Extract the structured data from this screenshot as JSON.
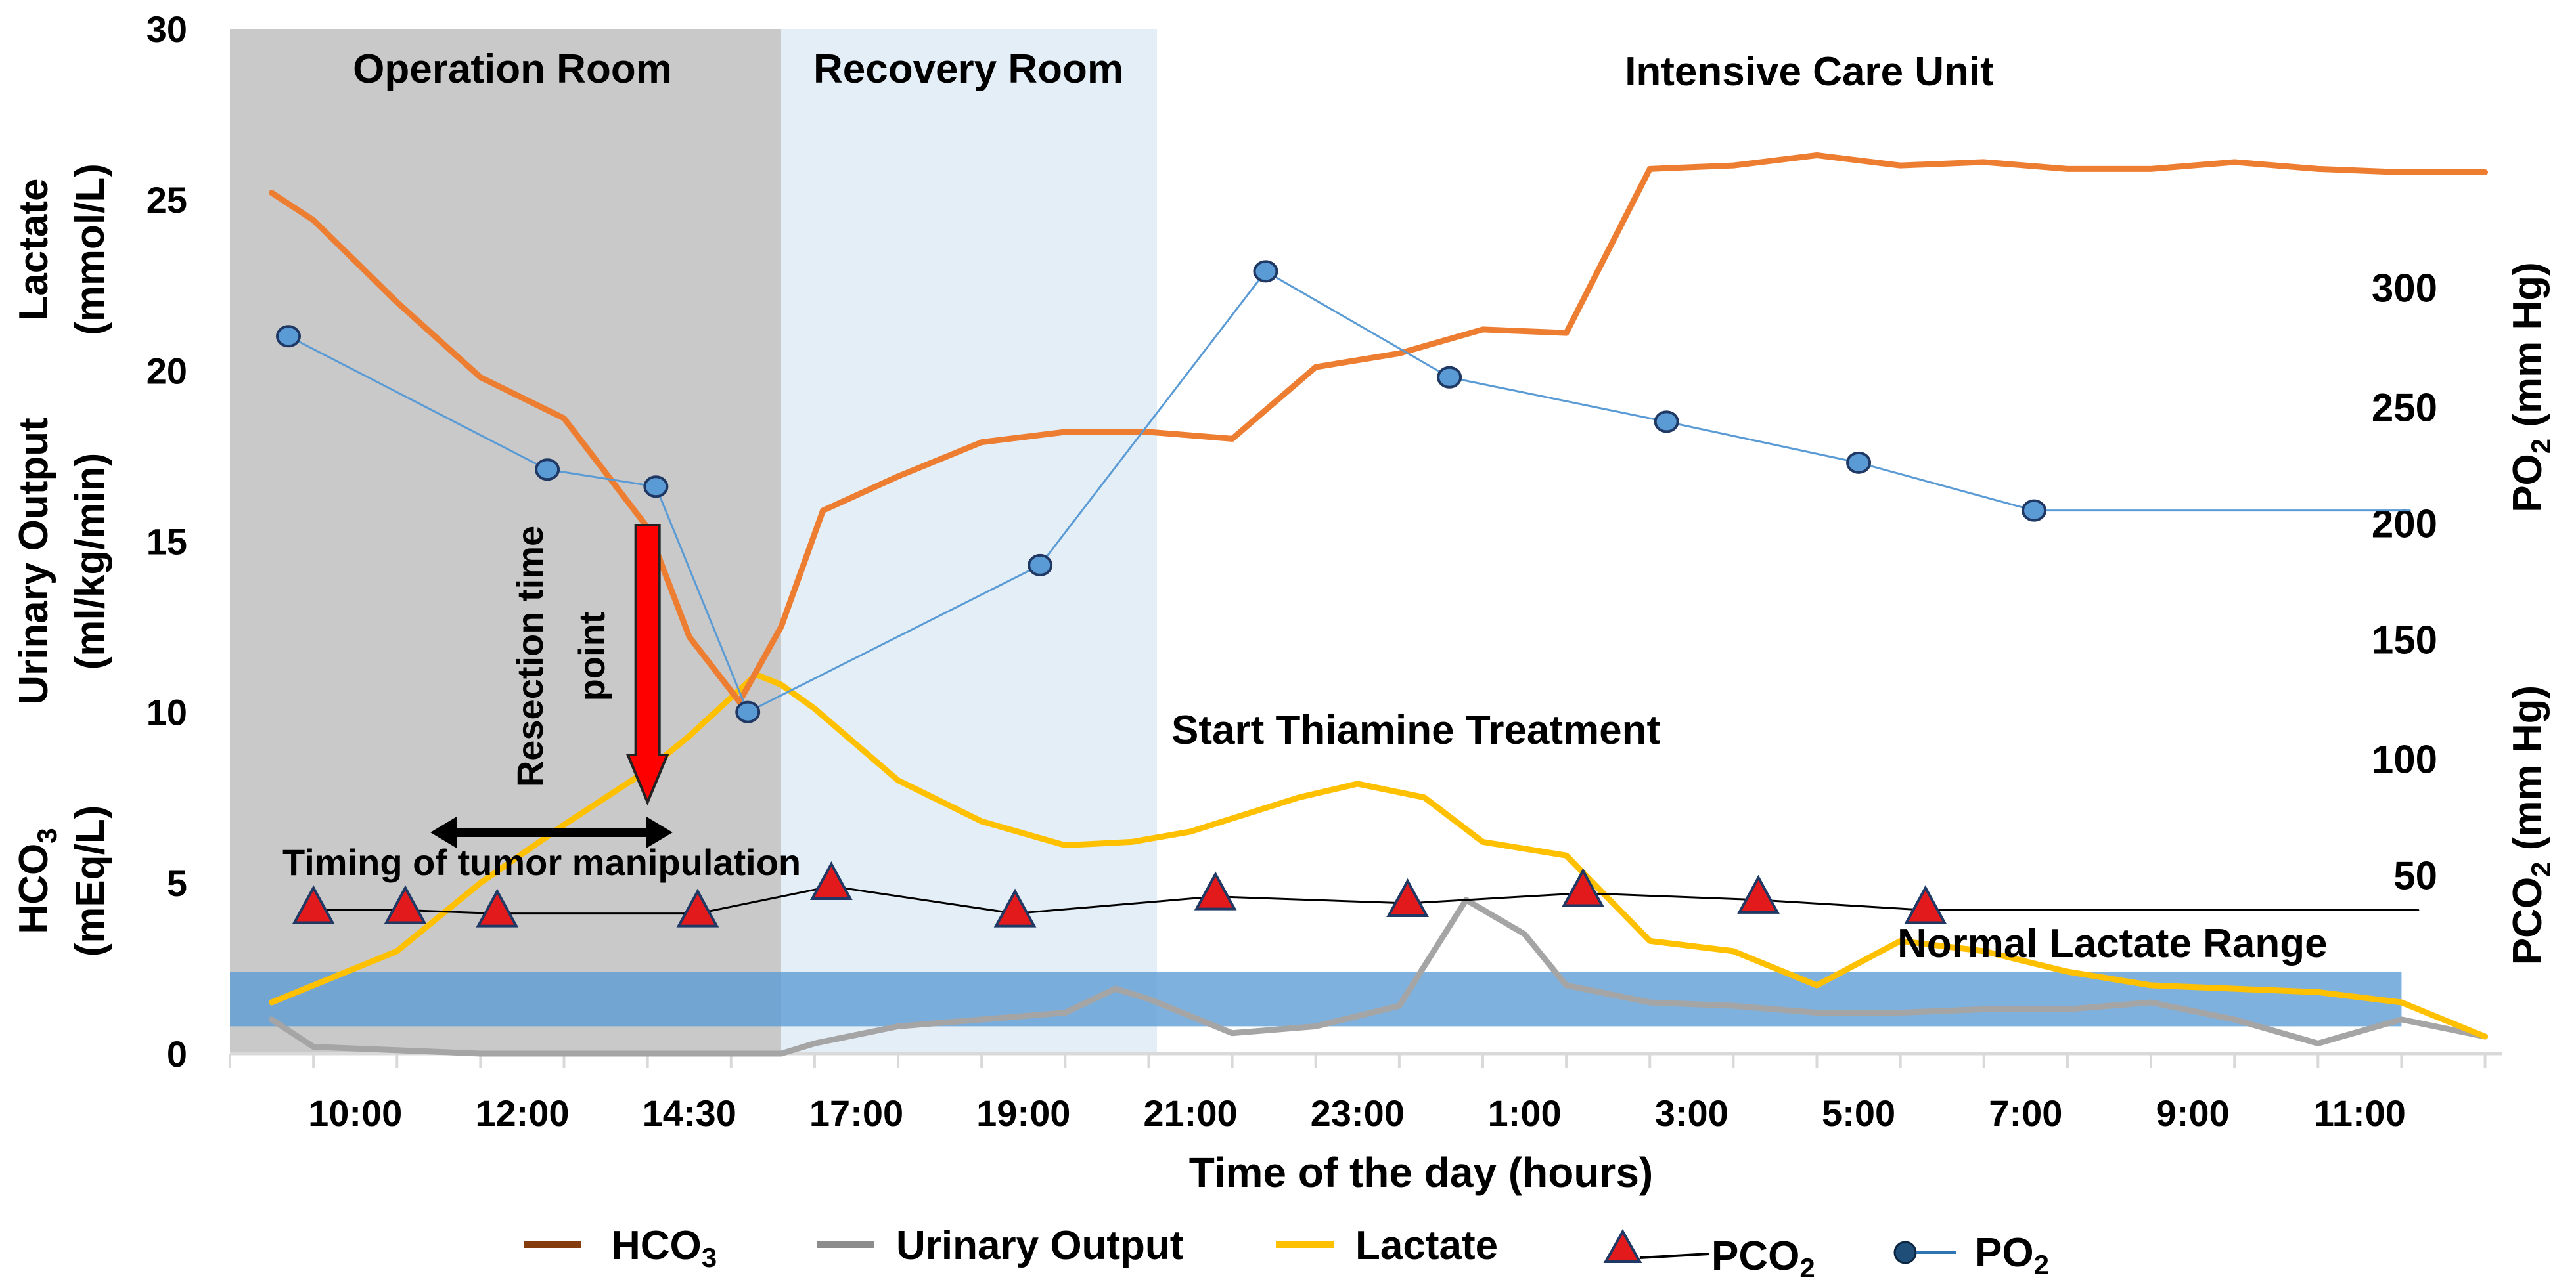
{
  "chart_data": {
    "type": "line",
    "x_tick_labels": [
      "10:00",
      "12:00",
      "14:30",
      "17:00",
      "19:00",
      "21:00",
      "23:00",
      "1:00",
      "3:00",
      "5:00",
      "7:00",
      "9:00",
      "11:00"
    ],
    "xlabel": "Time of the day (hours)",
    "left_axis": {
      "labels": [
        {
          "line1": "Lactate",
          "line2": "(mmol/L)"
        },
        {
          "line1": "Urinary Output",
          "line2": "(ml/kg/min)"
        },
        {
          "line1": "HCO",
          "sub": "3",
          "line2": "(mEq/L)"
        }
      ],
      "ylim": [
        0,
        30
      ],
      "ticks": [
        0,
        5,
        10,
        15,
        20,
        25,
        30
      ]
    },
    "right_axis_po2": {
      "label": "PO",
      "sub": "2",
      "suffix": " (mm Hg)",
      "ticks": [
        200,
        250,
        300
      ]
    },
    "right_axis_pco2": {
      "label": "PCO",
      "sub": "2",
      "suffix": " (mm Hg)",
      "ticks": [
        50,
        100,
        150
      ]
    },
    "phases": [
      {
        "label": "Operation Room",
        "x_start": 0,
        "x_end": 6.6,
        "color": "#c9c9c9"
      },
      {
        "label": "Recovery Room",
        "x_start": 6.6,
        "x_end": 11.1,
        "color": "#e3eef7"
      },
      {
        "label": "Intensive Care Unit",
        "x_start": 11.1,
        "x_end": 27.2,
        "color": "#ffffff"
      }
    ],
    "normal_range": {
      "label": "Normal Lactate Range",
      "y_start": 0.8,
      "y_end": 2.4,
      "color": "#5b9bd5"
    },
    "annotations": {
      "resection": {
        "line1": "Resection time",
        "line2": "point",
        "x": 5.0
      },
      "manipulation": {
        "label": "Timing of tumor manipulation",
        "x_start": 2.4,
        "x_end": 5.3,
        "y": 6.5
      },
      "thiamine": {
        "label": "Start Thiamine Treatment"
      }
    },
    "series": [
      {
        "name": "HCO",
        "sub": "3",
        "color": "#ed7d31",
        "legend_color": "#843c0c",
        "x": [
          0.5,
          1,
          2,
          3,
          4,
          5,
          5.5,
          6.1,
          6.6,
          7.1,
          8,
          9,
          10,
          11,
          12,
          13,
          14,
          15,
          16,
          17,
          18,
          19,
          20,
          21,
          22,
          23,
          24,
          25,
          26,
          27
        ],
        "y": [
          25.2,
          24.4,
          22,
          19.8,
          18.6,
          15.4,
          12.2,
          10.3,
          12.5,
          15.9,
          16.9,
          17.9,
          18.2,
          18.2,
          18,
          20.1,
          20.5,
          21.2,
          21.1,
          25.9,
          26,
          26.3,
          26,
          26.1,
          25.9,
          25.9,
          26.1,
          25.9,
          25.8,
          25.8
        ]
      },
      {
        "name": "Urinary Output",
        "color": "#a5a5a5",
        "legend_color": "#8c8c8c",
        "x": [
          0.5,
          1,
          2,
          3,
          4,
          5,
          6,
          6.6,
          7,
          8,
          9,
          10,
          10.6,
          11,
          12,
          13,
          14,
          14.8,
          15.5,
          16,
          17,
          18,
          19,
          20,
          21,
          22,
          23,
          24,
          25,
          26,
          27
        ],
        "y": [
          1,
          0.2,
          0.1,
          0,
          0,
          0,
          0,
          0,
          0.3,
          0.8,
          1,
          1.2,
          1.9,
          1.6,
          0.6,
          0.8,
          1.4,
          4.5,
          3.5,
          2,
          1.5,
          1.4,
          1.2,
          1.2,
          1.3,
          1.3,
          1.5,
          1,
          0.3,
          1,
          0.5
        ]
      },
      {
        "name": "Lactate",
        "color": "#ffc000",
        "legend_color": "#ffc000",
        "x": [
          0.5,
          1,
          2,
          3,
          4,
          5,
          5.5,
          6.3,
          6.6,
          7,
          8,
          9,
          10,
          10.8,
          11.5,
          12.8,
          13.5,
          14.3,
          15,
          16,
          17,
          18,
          19,
          20,
          21,
          22,
          23,
          24,
          25,
          26,
          27
        ],
        "y": [
          1.5,
          2,
          3,
          5,
          6.7,
          8.3,
          9.3,
          11.1,
          10.8,
          10.1,
          8,
          6.8,
          6.1,
          6.2,
          6.5,
          7.5,
          7.9,
          7.5,
          6.2,
          5.8,
          3.3,
          3,
          2,
          3.3,
          3,
          2.4,
          2,
          1.9,
          1.8,
          1.5,
          0.5
        ]
      },
      {
        "name": "PCO",
        "sub": "2",
        "color": "#000000",
        "marker": "triangle",
        "marker_color": "#e31a1c",
        "x": [
          1,
          2.1,
          3.2,
          5.6,
          7.2,
          9.4,
          11.8,
          14.1,
          16.2,
          18.3,
          20.3
        ],
        "line_end_x": 26.2,
        "y": [
          4.2,
          4.2,
          4.1,
          4.1,
          4.9,
          4.1,
          4.6,
          4.4,
          4.7,
          4.5,
          4.2
        ]
      },
      {
        "name": "PO",
        "sub": "2",
        "color": "#5b9bd5",
        "marker": "circle",
        "marker_color": "#5b9bd5",
        "x": [
          0.7,
          3.8,
          5.1,
          6.2,
          9.7,
          12.4,
          14.6,
          17.2,
          19.5,
          21.6
        ],
        "line_end_x": 26.1,
        "y": [
          21,
          17.1,
          16.6,
          10,
          14.3,
          22.9,
          19.8,
          18.5,
          17.3,
          15.9
        ]
      }
    ],
    "legend": {
      "location": "bottom"
    }
  }
}
